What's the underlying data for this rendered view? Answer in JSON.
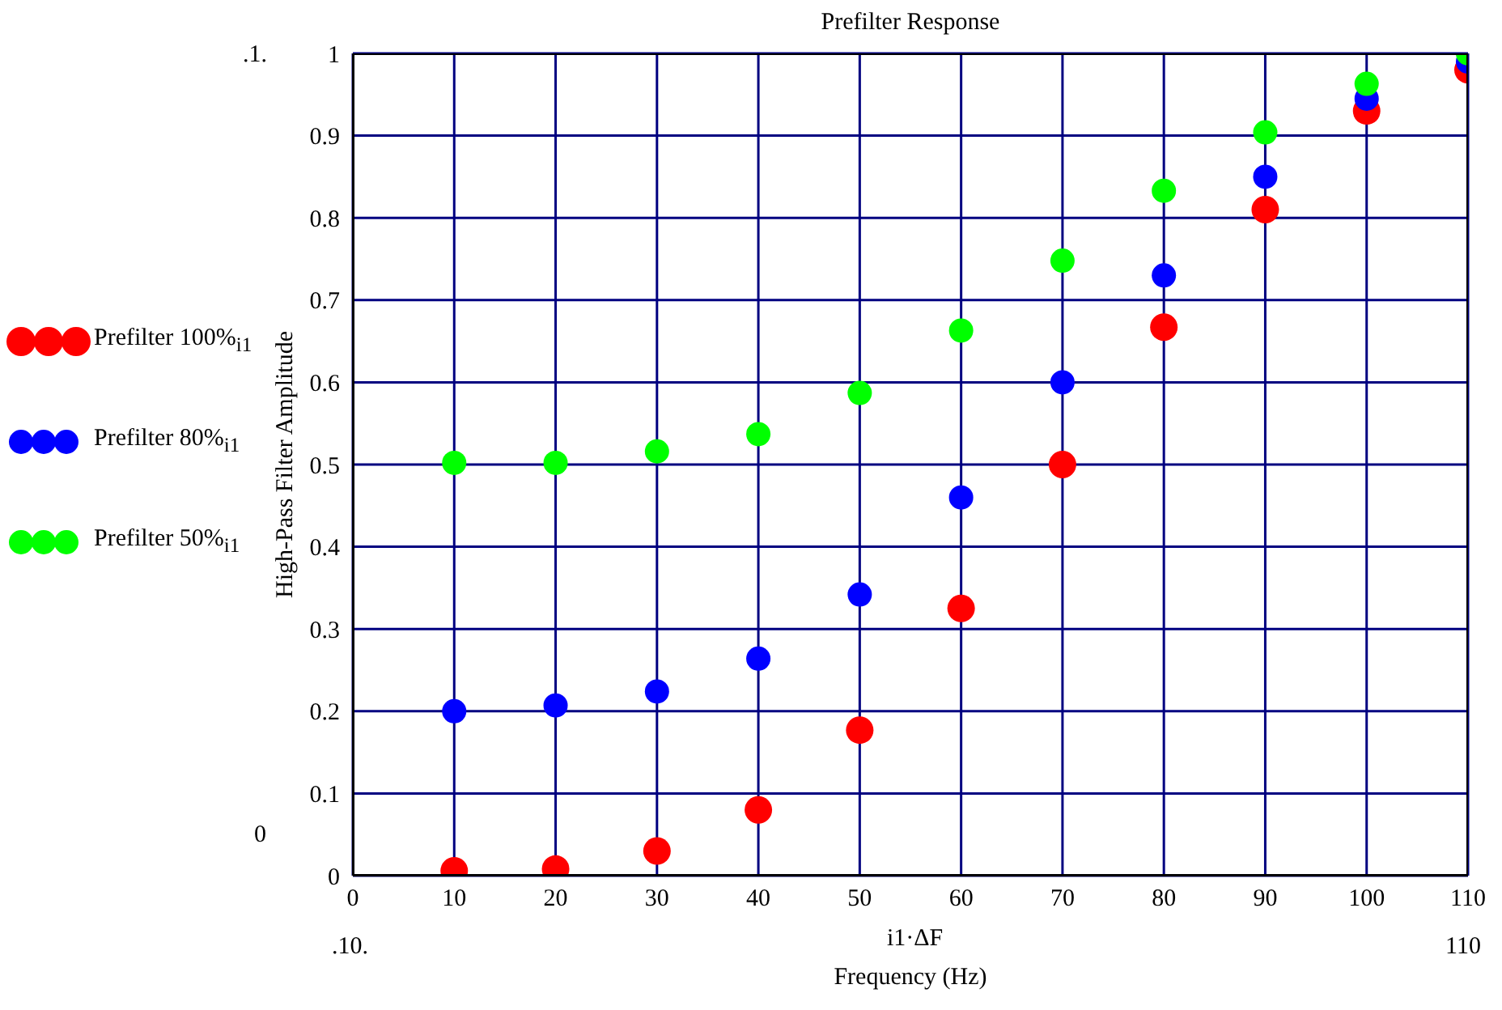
{
  "chart_data": {
    "type": "scatter",
    "title": "Prefilter Response",
    "xlabel": "Frequency (Hz)",
    "ylabel": "High-Pass Filter Amplitude",
    "annotations": [
      ".1.",
      "0",
      ".10.",
      "i1·ΔF",
      "110"
    ],
    "x": [
      10,
      20,
      30,
      40,
      50,
      60,
      70,
      80,
      90,
      100,
      110
    ],
    "series": [
      {
        "name": "Prefilter 100%$_{i1}$",
        "color": "#ff0000",
        "values": [
          0.006,
          0.008,
          0.03,
          0.08,
          0.177,
          0.325,
          0.5,
          0.667,
          0.81,
          0.93,
          0.98
        ]
      },
      {
        "name": "Prefilter 80%$_{i1}$",
        "color": "#0000ff",
        "values": [
          0.2,
          0.207,
          0.224,
          0.264,
          0.342,
          0.46,
          0.6,
          0.73,
          0.85,
          0.945,
          0.99
        ]
      },
      {
        "name": "Prefilter 50%$_{i1}$",
        "color": "#00ff00",
        "values": [
          0.502,
          0.502,
          0.516,
          0.537,
          0.587,
          0.663,
          0.748,
          0.833,
          0.904,
          0.963,
          1.0
        ]
      }
    ],
    "xlim": [
      0,
      110
    ],
    "xticks": [
      0,
      10,
      20,
      30,
      40,
      50,
      60,
      70,
      80,
      90,
      100,
      110
    ],
    "ylim": [
      0,
      1
    ],
    "yticks": [
      0,
      0.1,
      0.2,
      0.3,
      0.4,
      0.5,
      0.6,
      0.7,
      0.8,
      0.9,
      1
    ],
    "grid": true,
    "legend": "left",
    "marker": "circle"
  }
}
